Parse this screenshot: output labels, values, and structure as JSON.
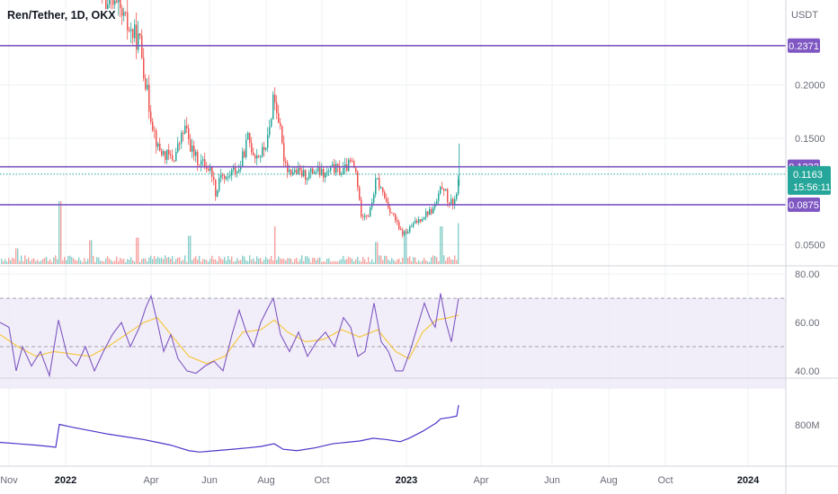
{
  "symbol": {
    "label": "Ren/Tether, 1D, OKX"
  },
  "colors": {
    "up": "#26a69a",
    "down": "#ef5350",
    "level": "#7e57c2",
    "rsi_line": "#7e57c2",
    "rsi_ma": "#f5c842",
    "rsi_band": "#ede7f6",
    "obv_line": "#4a36c9",
    "current": "#26a69a",
    "grid": "#eef0f3"
  },
  "chart_data": {
    "type": "candlestick",
    "title": "Ren/Tether, 1D, OKX",
    "price_axis": {
      "unit_label": "USDT",
      "ticks": [
        "0.2000",
        "0.1500",
        "0.0500"
      ],
      "ylim": [
        0.03,
        0.28
      ]
    },
    "time_axis": {
      "labels": [
        "Nov",
        "2022",
        "Apr",
        "Jun",
        "Aug",
        "Oct",
        "2023",
        "Apr",
        "Jun",
        "Aug",
        "Oct",
        "2024"
      ],
      "bold": [
        "2022",
        "2023",
        "2024"
      ]
    },
    "horizontal_levels": [
      {
        "value": 0.2371,
        "label": "0.2371"
      },
      {
        "value": 0.1232,
        "label": "0.1232"
      },
      {
        "value": 0.0875,
        "label": "0.0875"
      }
    ],
    "current_price": {
      "value": 0.1163,
      "label": "0.1163",
      "countdown": "15:56:11"
    },
    "price_path": [
      [
        0,
        0.36
      ],
      [
        38,
        0.39
      ],
      [
        48,
        0.3
      ],
      [
        62,
        0.34
      ],
      [
        80,
        0.31
      ],
      [
        100,
        0.33
      ],
      [
        115,
        0.28
      ],
      [
        130,
        0.27
      ],
      [
        145,
        0.25
      ],
      [
        155,
        0.24
      ],
      [
        165,
        0.18
      ],
      [
        175,
        0.14
      ],
      [
        182,
        0.135
      ],
      [
        192,
        0.13
      ],
      [
        205,
        0.16
      ],
      [
        212,
        0.14
      ],
      [
        218,
        0.13
      ],
      [
        228,
        0.125
      ],
      [
        235,
        0.118
      ],
      [
        240,
        0.095
      ],
      [
        244,
        0.12
      ],
      [
        250,
        0.11
      ],
      [
        258,
        0.12
      ],
      [
        265,
        0.12
      ],
      [
        275,
        0.15
      ],
      [
        282,
        0.135
      ],
      [
        290,
        0.135
      ],
      [
        298,
        0.15
      ],
      [
        303,
        0.19
      ],
      [
        308,
        0.175
      ],
      [
        314,
        0.135
      ],
      [
        320,
        0.12
      ],
      [
        330,
        0.118
      ],
      [
        340,
        0.115
      ],
      [
        350,
        0.12
      ],
      [
        360,
        0.115
      ],
      [
        370,
        0.122
      ],
      [
        380,
        0.118
      ],
      [
        390,
        0.128
      ],
      [
        396,
        0.115
      ],
      [
        400,
        0.08
      ],
      [
        410,
        0.078
      ],
      [
        418,
        0.112
      ],
      [
        424,
        0.1
      ],
      [
        432,
        0.085
      ],
      [
        438,
        0.075
      ],
      [
        444,
        0.062
      ],
      [
        450,
        0.06
      ],
      [
        458,
        0.068
      ],
      [
        466,
        0.074
      ],
      [
        474,
        0.08
      ],
      [
        480,
        0.082
      ],
      [
        486,
        0.092
      ],
      [
        492,
        0.108
      ],
      [
        498,
        0.088
      ],
      [
        504,
        0.09
      ],
      [
        510,
        0.11
      ]
    ],
    "rsi": {
      "levels": [
        80,
        70,
        60,
        50,
        40
      ],
      "ticks": [
        "80.00",
        "60.00",
        "40.00"
      ],
      "ylim": [
        37,
        83
      ],
      "path": [
        [
          0,
          60
        ],
        [
          10,
          58
        ],
        [
          18,
          40
        ],
        [
          25,
          50
        ],
        [
          35,
          42
        ],
        [
          45,
          48
        ],
        [
          55,
          38
        ],
        [
          65,
          61
        ],
        [
          75,
          46
        ],
        [
          85,
          42
        ],
        [
          95,
          50
        ],
        [
          105,
          40
        ],
        [
          115,
          48
        ],
        [
          125,
          55
        ],
        [
          135,
          60
        ],
        [
          145,
          50
        ],
        [
          155,
          58
        ],
        [
          162,
          66
        ],
        [
          168,
          71
        ],
        [
          175,
          60
        ],
        [
          182,
          48
        ],
        [
          190,
          55
        ],
        [
          198,
          45
        ],
        [
          208,
          40
        ],
        [
          218,
          39
        ],
        [
          228,
          42
        ],
        [
          238,
          44
        ],
        [
          248,
          40
        ],
        [
          258,
          55
        ],
        [
          266,
          65
        ],
        [
          274,
          56
        ],
        [
          282,
          50
        ],
        [
          290,
          60
        ],
        [
          298,
          66
        ],
        [
          304,
          70
        ],
        [
          312,
          55
        ],
        [
          322,
          48
        ],
        [
          332,
          56
        ],
        [
          342,
          46
        ],
        [
          352,
          52
        ],
        [
          362,
          56
        ],
        [
          372,
          50
        ],
        [
          382,
          62
        ],
        [
          390,
          58
        ],
        [
          398,
          46
        ],
        [
          406,
          48
        ],
        [
          416,
          68
        ],
        [
          424,
          52
        ],
        [
          432,
          48
        ],
        [
          440,
          40
        ],
        [
          448,
          40
        ],
        [
          456,
          48
        ],
        [
          464,
          58
        ],
        [
          472,
          68
        ],
        [
          478,
          62
        ],
        [
          484,
          58
        ],
        [
          490,
          72
        ],
        [
          496,
          60
        ],
        [
          502,
          52
        ],
        [
          510,
          70
        ]
      ],
      "ma_path": [
        [
          0,
          55
        ],
        [
          20,
          50
        ],
        [
          40,
          46
        ],
        [
          60,
          48
        ],
        [
          80,
          47
        ],
        [
          100,
          46
        ],
        [
          120,
          50
        ],
        [
          140,
          55
        ],
        [
          160,
          60
        ],
        [
          175,
          62
        ],
        [
          190,
          55
        ],
        [
          210,
          46
        ],
        [
          230,
          43
        ],
        [
          250,
          46
        ],
        [
          270,
          56
        ],
        [
          290,
          57
        ],
        [
          305,
          61
        ],
        [
          320,
          56
        ],
        [
          340,
          52
        ],
        [
          360,
          53
        ],
        [
          380,
          57
        ],
        [
          400,
          54
        ],
        [
          420,
          57
        ],
        [
          440,
          48
        ],
        [
          455,
          45
        ],
        [
          470,
          56
        ],
        [
          485,
          61
        ],
        [
          500,
          62
        ],
        [
          510,
          63
        ]
      ]
    },
    "obv": {
      "ticks": [
        "800M"
      ],
      "ylim": [
        0,
        100
      ],
      "path": [
        [
          0,
          24
        ],
        [
          20,
          22
        ],
        [
          40,
          20
        ],
        [
          55,
          18
        ],
        [
          62,
          17
        ],
        [
          66,
          50
        ],
        [
          80,
          46
        ],
        [
          100,
          41
        ],
        [
          120,
          36
        ],
        [
          140,
          32
        ],
        [
          160,
          28
        ],
        [
          175,
          24
        ],
        [
          190,
          20
        ],
        [
          200,
          16
        ],
        [
          210,
          12
        ],
        [
          222,
          10
        ],
        [
          240,
          12
        ],
        [
          258,
          14
        ],
        [
          275,
          16
        ],
        [
          290,
          18
        ],
        [
          305,
          22
        ],
        [
          315,
          14
        ],
        [
          330,
          12
        ],
        [
          350,
          16
        ],
        [
          370,
          22
        ],
        [
          385,
          24
        ],
        [
          400,
          26
        ],
        [
          415,
          30
        ],
        [
          430,
          28
        ],
        [
          445,
          25
        ],
        [
          455,
          30
        ],
        [
          470,
          40
        ],
        [
          485,
          52
        ],
        [
          490,
          58
        ],
        [
          500,
          60
        ],
        [
          508,
          62
        ],
        [
          510,
          78
        ]
      ]
    },
    "volume": {
      "spikes": [
        [
          18,
          0.25
        ],
        [
          66,
          1.0
        ],
        [
          100,
          0.38
        ],
        [
          152,
          0.42
        ],
        [
          210,
          0.45
        ],
        [
          305,
          0.6
        ],
        [
          418,
          0.35
        ],
        [
          450,
          0.55
        ],
        [
          490,
          0.6
        ],
        [
          510,
          0.65
        ]
      ]
    }
  }
}
